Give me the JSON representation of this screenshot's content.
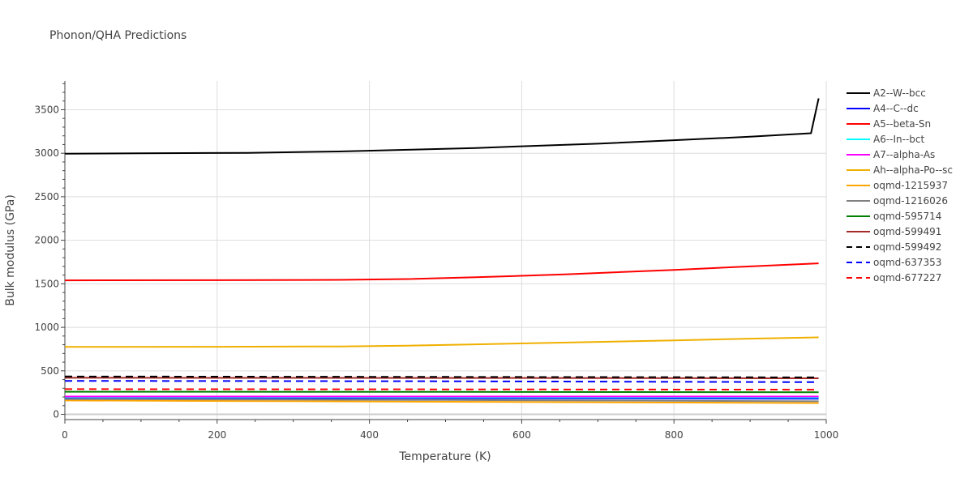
{
  "chart_data": {
    "type": "line",
    "title": "Phonon/QHA Predictions",
    "xlabel": "Temperature (K)",
    "ylabel": "Bulk modulus (GPa)",
    "xlim": [
      0,
      1000
    ],
    "ylim": [
      -60,
      3830
    ],
    "xticks": [
      0,
      200,
      400,
      600,
      800,
      1000
    ],
    "yticks": [
      0,
      500,
      1000,
      1500,
      2000,
      2500,
      3000,
      3500
    ],
    "grid": true,
    "legend_position": "right",
    "series": [
      {
        "name": "A2--W--bcc",
        "color": "#000000",
        "dash": "solid",
        "x": [
          0,
          100,
          240,
          360,
          450,
          540,
          600,
          700,
          800,
          900,
          980,
          990
        ],
        "y": [
          2995,
          3000,
          3005,
          3020,
          3040,
          3060,
          3080,
          3110,
          3150,
          3190,
          3230,
          3630
        ]
      },
      {
        "name": "A4--C--dc",
        "color": "#0000ff",
        "dash": "solid",
        "x": [
          0,
          500,
          990
        ],
        "y": [
          190,
          185,
          180
        ]
      },
      {
        "name": "A5--beta-Sn",
        "color": "#ff0000",
        "dash": "solid",
        "x": [
          0,
          200,
          360,
          450,
          540,
          660,
          800,
          900,
          990
        ],
        "y": [
          1540,
          1542,
          1545,
          1555,
          1575,
          1610,
          1660,
          1700,
          1735
        ]
      },
      {
        "name": "A6--In--bct",
        "color": "#00ffff",
        "dash": "solid",
        "x": [
          0,
          500,
          990
        ],
        "y": [
          198,
          196,
          194
        ]
      },
      {
        "name": "A7--alpha-As",
        "color": "#ff00ff",
        "dash": "solid",
        "x": [
          0,
          500,
          990
        ],
        "y": [
          205,
          205,
          205
        ]
      },
      {
        "name": "Ah--alpha-Po--sc",
        "color": "#f0b000",
        "dash": "solid",
        "x": [
          0,
          200,
          360,
          450,
          540,
          660,
          800,
          900,
          990
        ],
        "y": [
          775,
          777,
          780,
          790,
          805,
          825,
          850,
          870,
          885
        ]
      },
      {
        "name": "oqmd-1215937",
        "color": "#ffa500",
        "dash": "solid",
        "x": [
          0,
          500,
          990
        ],
        "y": [
          160,
          145,
          130
        ]
      },
      {
        "name": "oqmd-1216026",
        "color": "#808080",
        "dash": "solid",
        "x": [
          0,
          500,
          990
        ],
        "y": [
          175,
          165,
          150
        ]
      },
      {
        "name": "oqmd-595714",
        "color": "#008000",
        "dash": "solid",
        "x": [
          0,
          500,
          990
        ],
        "y": [
          260,
          258,
          255
        ]
      },
      {
        "name": "oqmd-599491",
        "color": "#a52a2a",
        "dash": "solid",
        "x": [
          0,
          500,
          990
        ],
        "y": [
          420,
          418,
          415
        ]
      },
      {
        "name": "oqmd-599492",
        "color": "#000000",
        "dash": "dash",
        "x": [
          0,
          500,
          990
        ],
        "y": [
          435,
          430,
          425
        ]
      },
      {
        "name": "oqmd-637353",
        "color": "#0000ff",
        "dash": "dash",
        "x": [
          0,
          500,
          990
        ],
        "y": [
          385,
          380,
          370
        ]
      },
      {
        "name": "oqmd-677227",
        "color": "#ff0000",
        "dash": "dash",
        "x": [
          0,
          500,
          990
        ],
        "y": [
          290,
          287,
          283
        ]
      }
    ]
  }
}
